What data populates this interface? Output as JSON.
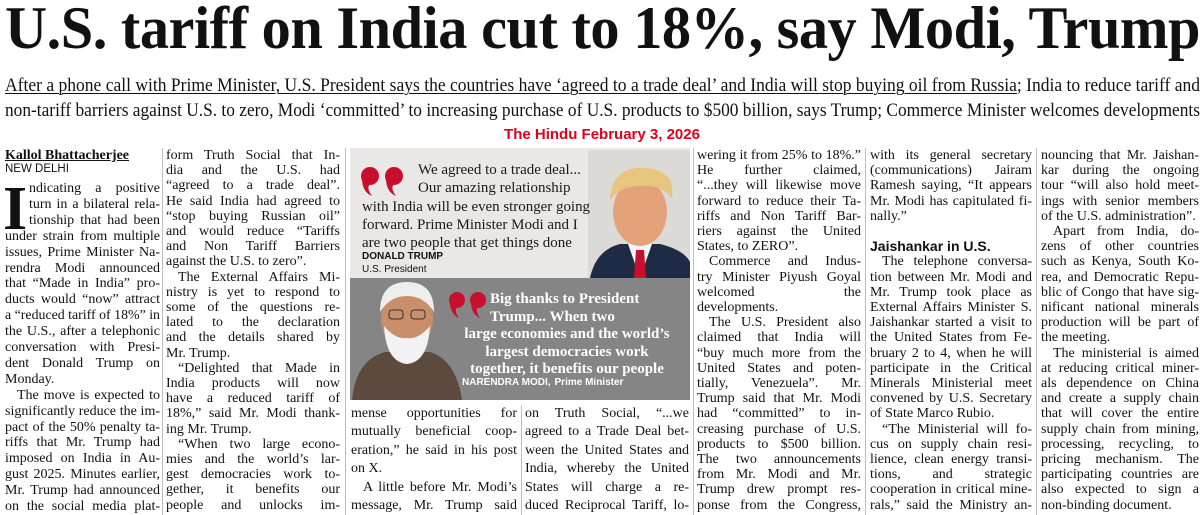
{
  "headline": "U.S. tariff on India cut to 18%, say Modi, Trump",
  "deck": {
    "underlined": "After a phone call with Prime Minister, U.S. President says the countries have ‘agreed to a trade deal’ and India will stop buying oil from Russia",
    "line1_rest": "; India to reduce tariff and",
    "line2": "non-tariff barriers against U.S. to zero, Modi ‘committed’ to increasing purchase of U.S. products to $500 billion, says Trump; Commerce Minister welcomes developments"
  },
  "source_note": "The Hindu February 3, 2026",
  "byline": "Kallol Bhattacherjee",
  "dateline": "NEW DELHI",
  "drop_cap": "I",
  "columns": [
    {
      "blocks": [
        {
          "lines": [
            "ndicating a positive",
            "turn in a bilateral rela-",
            "tionship that had been",
            "under strain from multiple",
            "issues, Prime Minister Na-",
            "rendra Modi announced",
            "that “Made in India” pro-",
            "ducts would “now” attract",
            "a “reduced tariff of 18%” in",
            "the U.S., after a telephonic",
            "conversation with Presi-",
            "dent Donald Trump on",
            "Monday."
          ]
        },
        {
          "lines": [
            "The move is expected to",
            "significantly reduce the im-",
            "pact of the 50% penalty ta-",
            "riffs that Mr. Trump had",
            "imposed on India in Au-",
            "gust 2025. Minutes earlier,",
            "Mr. Trump had announced",
            "on the social media plat-"
          ]
        }
      ]
    },
    {
      "blocks": [
        {
          "lines": [
            "form Truth Social that In-",
            "dia and the U.S. had",
            "“agreed to a trade deal”.",
            "He said India had agreed to",
            "“stop buying Russian oil”",
            "and would reduce “Tariffs",
            "and Non Tariff Barriers",
            "against the U.S. to zero”."
          ]
        },
        {
          "lines": [
            "The External Affairs Mi-",
            "nistry is yet to respond to",
            "some of the questions re-",
            "lated to the declaration",
            "and the details shared by",
            "Mr. Trump."
          ]
        },
        {
          "lines": [
            "“Delighted that Made in",
            "India products will now",
            "have a reduced tariff of",
            "18%,” said Mr. Modi thank-",
            "ing Mr. Trump."
          ]
        },
        {
          "lines": [
            "“When two large econo-",
            "mies and the world’s lar-",
            "gest democracies work to-",
            "gether, it benefits our",
            "people and unlocks im-"
          ]
        }
      ]
    },
    {
      "blocks": [
        {
          "lines": [
            "mense opportunities for",
            "mutually beneficial coop-",
            "eration,” he said in his post",
            "on X."
          ]
        },
        {
          "lines": [
            "A little before Mr. Modi’s",
            "message, Mr. Trump said"
          ]
        }
      ]
    },
    {
      "blocks": [
        {
          "lines": [
            "on Truth Social, “...we",
            "agreed to a Trade Deal bet-",
            "ween the United States and",
            "India, whereby the United",
            "States will charge a re-",
            "duced Reciprocal Tariff, lo-"
          ]
        }
      ]
    },
    {
      "blocks": [
        {
          "lines": [
            "wering it from 25% to 18%.”",
            "He further claimed,",
            "“...they will likewise move",
            "forward to reduce their Ta-",
            "riffs and Non Tariff Bar-",
            "riers against the United",
            "States, to ZERO”."
          ]
        },
        {
          "lines": [
            "Commerce and Indus-",
            "try Minister Piyush Goyal",
            "welcomed the",
            "developments."
          ]
        },
        {
          "lines": [
            "The U.S. President also",
            "claimed that India will",
            "“buy much more from the",
            "United States and poten-",
            "tially, Venezuela”. Mr.",
            "Trump said that Mr. Modi",
            "had “committed” to in-",
            "creasing purchase of U.S.",
            "products to $500 billion.",
            "The two announcements",
            "from Mr. Modi and Mr.",
            "Trump drew prompt res-",
            "ponse from the Congress,"
          ]
        }
      ]
    },
    {
      "blocks": [
        {
          "lines": [
            "with its general secretary",
            "(communications) Jairam",
            "Ramesh saying, “It appears",
            "Mr. Modi has capitulated fi-",
            "nally.”"
          ]
        },
        {
          "heading": "Jaishankar in U.S."
        },
        {
          "lines": [
            "The telephone conversa-",
            "tion between Mr. Modi and",
            "Mr. Trump took place as",
            "External Affairs Minister S.",
            "Jaishankar started a visit to",
            "the United States from Fe-",
            "bruary 2 to 4, when he will",
            "participate in the Critical",
            "Minerals Ministerial meet",
            "convened by U.S. Secretary",
            "of State Marco Rubio."
          ]
        },
        {
          "lines": [
            "“The Ministerial will fo-",
            "cus on supply chain resi-",
            "lience, clean energy transi-",
            "tions, and strategic",
            "cooperation in critical mine-",
            "rals,” said the Ministry an-"
          ]
        }
      ]
    },
    {
      "blocks": [
        {
          "lines": [
            "nouncing that Mr. Jaishan-",
            "kar during the ongoing",
            "tour “will also hold meet-",
            "ings with senior members",
            "of the U.S. administration”."
          ]
        },
        {
          "lines": [
            "Apart from India, do-",
            "zens of other countries",
            "such as Kenya, South Ko-",
            "rea, and Democratic Repu-",
            "blic of Congo that have sig-",
            "nificant national minerals",
            "production will be part of",
            "the meeting."
          ]
        },
        {
          "lines": [
            "The ministerial is aimed",
            "at reducing critical miner-",
            "als dependence on China",
            "and create a supply chain",
            "that will cover the entire",
            "supply chain from mining,",
            "processing, recycling, to",
            "pricing mechanism. The",
            "participating countries are",
            "also expected to sign a",
            "non-binding document."
          ]
        }
      ]
    }
  ],
  "quotes": [
    {
      "lines": [
        "We agreed to a trade deal...",
        "Our amazing relationship",
        "with India will be even stronger going",
        "forward. Prime Minister Modi and I",
        "are two people that get things done"
      ],
      "name": "DONALD TRUMP",
      "role": "U.S. President"
    },
    {
      "lines": [
        "Big thanks to President",
        "Trump... When two",
        "large economies and the world’s",
        "largest democracies work",
        "together, it benefits our people"
      ],
      "name": "NARENDRA MODI,",
      "role": "Prime Minister"
    }
  ]
}
